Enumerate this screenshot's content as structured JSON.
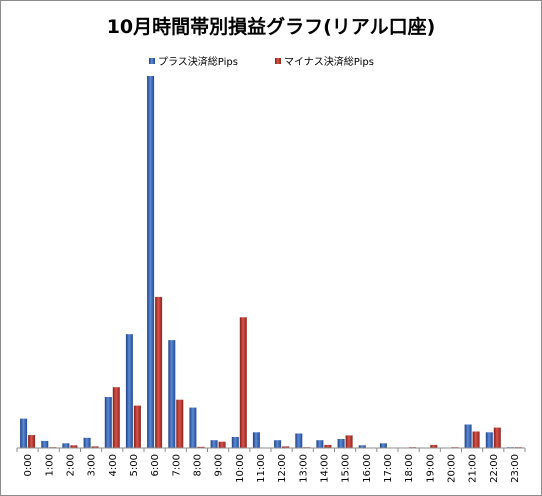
{
  "chart_data": {
    "type": "bar",
    "title": "10月時間帯別損益グラフ(リアル口座)",
    "xlabel": "",
    "ylabel": "",
    "categories": [
      "0:00",
      "1:00",
      "2:00",
      "3:00",
      "4:00",
      "5:00",
      "6:00",
      "7:00",
      "8:00",
      "9:00",
      "10:00",
      "11:00",
      "12:00",
      "13:00",
      "14:00",
      "15:00",
      "16:00",
      "17:00",
      "18:00",
      "19:00",
      "20:00",
      "21:00",
      "22:00",
      "23:00"
    ],
    "series": [
      {
        "name": "プラス決済総Pips",
        "color": "#3a67b8",
        "values": [
          75,
          18,
          12,
          26,
          130,
          290,
          948,
          275,
          103,
          20,
          28,
          40,
          20,
          37,
          20,
          23,
          7,
          12,
          0,
          0,
          0,
          60,
          40,
          2
        ]
      },
      {
        "name": "マイナス決済総Pips",
        "color": "#c0392b",
        "values": [
          33,
          2,
          7,
          4,
          155,
          108,
          385,
          123,
          3,
          16,
          333,
          0,
          4,
          2,
          8,
          32,
          0,
          0,
          2,
          8,
          2,
          42,
          52,
          2
        ]
      }
    ],
    "ylim": [
      0,
      948
    ],
    "legend": "top-center",
    "grid": false
  }
}
